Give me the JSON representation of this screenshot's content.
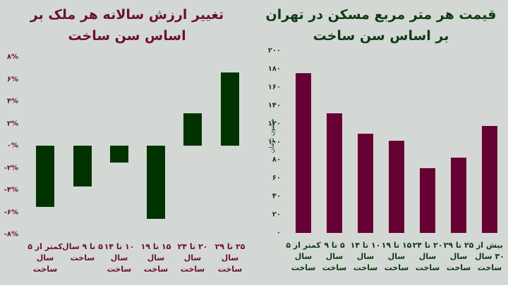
{
  "left_chart": {
    "title_line1": "تغییر ارزش سالانه هر ملک بر",
    "title_line2": "اساس سن ساخت",
    "ticks": [
      "۸%",
      "۶%",
      "۴%",
      "۲%",
      "۰%",
      "-۲%",
      "-۴%",
      "-۶%",
      "-۸%"
    ],
    "categories": [
      [
        "کمتر از ۵",
        "سال",
        "ساخت"
      ],
      [
        "۵ تا ۹ سال",
        "ساخت",
        ""
      ],
      [
        "۱۰ تا ۱۴",
        "سال",
        "ساخت"
      ],
      [
        "۱۵ تا ۱۹",
        "سال",
        "ساخت"
      ],
      [
        "۲۰ تا ۲۴",
        "سال",
        "ساخت"
      ],
      [
        "۲۵ تا ۲۹",
        "سال",
        "ساخت"
      ]
    ]
  },
  "right_chart": {
    "title_line1": "قیمت هر متر مربع مسکن در تهران",
    "title_line2": "بر اساس سن ساخت",
    "ylabel": "میلیون تومان",
    "ticks": [
      "۲۰۰",
      "۱۸۰",
      "۱۶۰",
      "۱۴۰",
      "۱۲۰",
      "۱۰۰",
      "۸۰",
      "۶۰",
      "۴۰",
      "۲۰",
      "۰"
    ],
    "categories": [
      [
        "کمتر از ۵",
        "سال",
        "ساخت"
      ],
      [
        "۵ تا ۹",
        "سال",
        "ساخت"
      ],
      [
        "۱۰ تا ۱۴",
        "سال",
        "ساخت"
      ],
      [
        "۱۵ تا ۱۹",
        "سال",
        "ساخت"
      ],
      [
        "۲۰ تا ۲۴",
        "سال",
        "ساخت"
      ],
      [
        "۲۵ تا ۲۹",
        "سال",
        "ساخت"
      ],
      [
        "بیش از",
        "۳۰ سال",
        "ساخت"
      ]
    ]
  },
  "chart_data": [
    {
      "type": "bar",
      "title": "تغییر ارزش سالانه هر ملک بر اساس سن ساخت",
      "categories": [
        "کمتر از ۵ سال ساخت",
        "۵ تا ۹ سال ساخت",
        "۱۰ تا ۱۴ سال ساخت",
        "۱۵ تا ۱۹ سال ساخت",
        "۲۰ تا ۲۴ سال ساخت",
        "۲۵ تا ۲۹ سال ساخت"
      ],
      "values": [
        -5.5,
        -3.7,
        -1.5,
        -6.6,
        2.9,
        6.6
      ],
      "xlabel": "",
      "ylabel": "%",
      "ylim": [
        -8,
        8
      ],
      "color": "#003300",
      "grid": false
    },
    {
      "type": "bar",
      "title": "قیمت هر متر مربع مسکن در تهران بر اساس سن ساخت",
      "categories": [
        "کمتر از ۵ سال ساخت",
        "۵ تا ۹ سال ساخت",
        "۱۰ تا ۱۴ سال ساخت",
        "۱۵ تا ۱۹ سال ساخت",
        "۲۰ تا ۲۴ سال ساخت",
        "۲۵ تا ۲۹ سال ساخت",
        "بیش از ۳۰ سال ساخت"
      ],
      "values": [
        175,
        131,
        109,
        101,
        71,
        83,
        117
      ],
      "xlabel": "",
      "ylabel": "میلیون تومان",
      "ylim": [
        0,
        200
      ],
      "color": "#660033",
      "grid": false
    }
  ]
}
